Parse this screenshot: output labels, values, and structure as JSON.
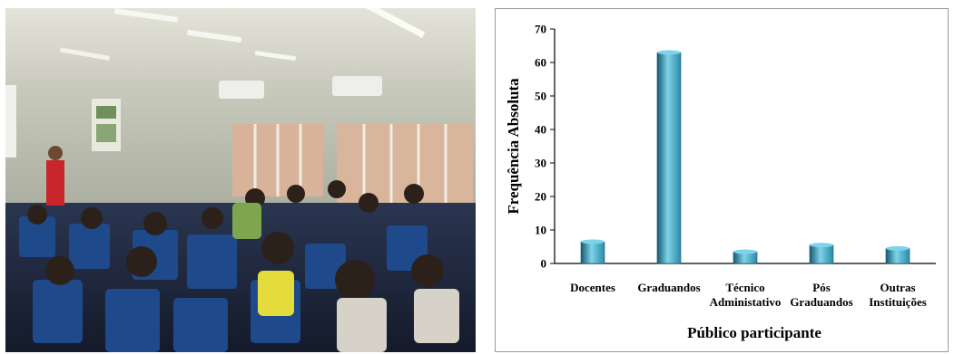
{
  "photo": {
    "alt_icon": "classroom-photo"
  },
  "chart_data": {
    "type": "bar",
    "categories": [
      [
        "Docentes"
      ],
      [
        "Graduandos"
      ],
      [
        "Técnico",
        "Administativo"
      ],
      [
        "Pós",
        "Graduandos"
      ],
      [
        "Outras",
        "Instituições"
      ]
    ],
    "values": [
      6.5,
      63,
      3.5,
      5.5,
      4.5
    ],
    "ylabel": "Frequência Absoluta",
    "xlabel": "Público participante",
    "ylim": [
      0,
      70
    ],
    "yticks": [
      0,
      10,
      20,
      30,
      40,
      50,
      60,
      70
    ],
    "grid": false,
    "bar_color": "#2a8aa8",
    "bar_highlight": "#7fd3e8",
    "bar_shadow": "#145a70"
  }
}
